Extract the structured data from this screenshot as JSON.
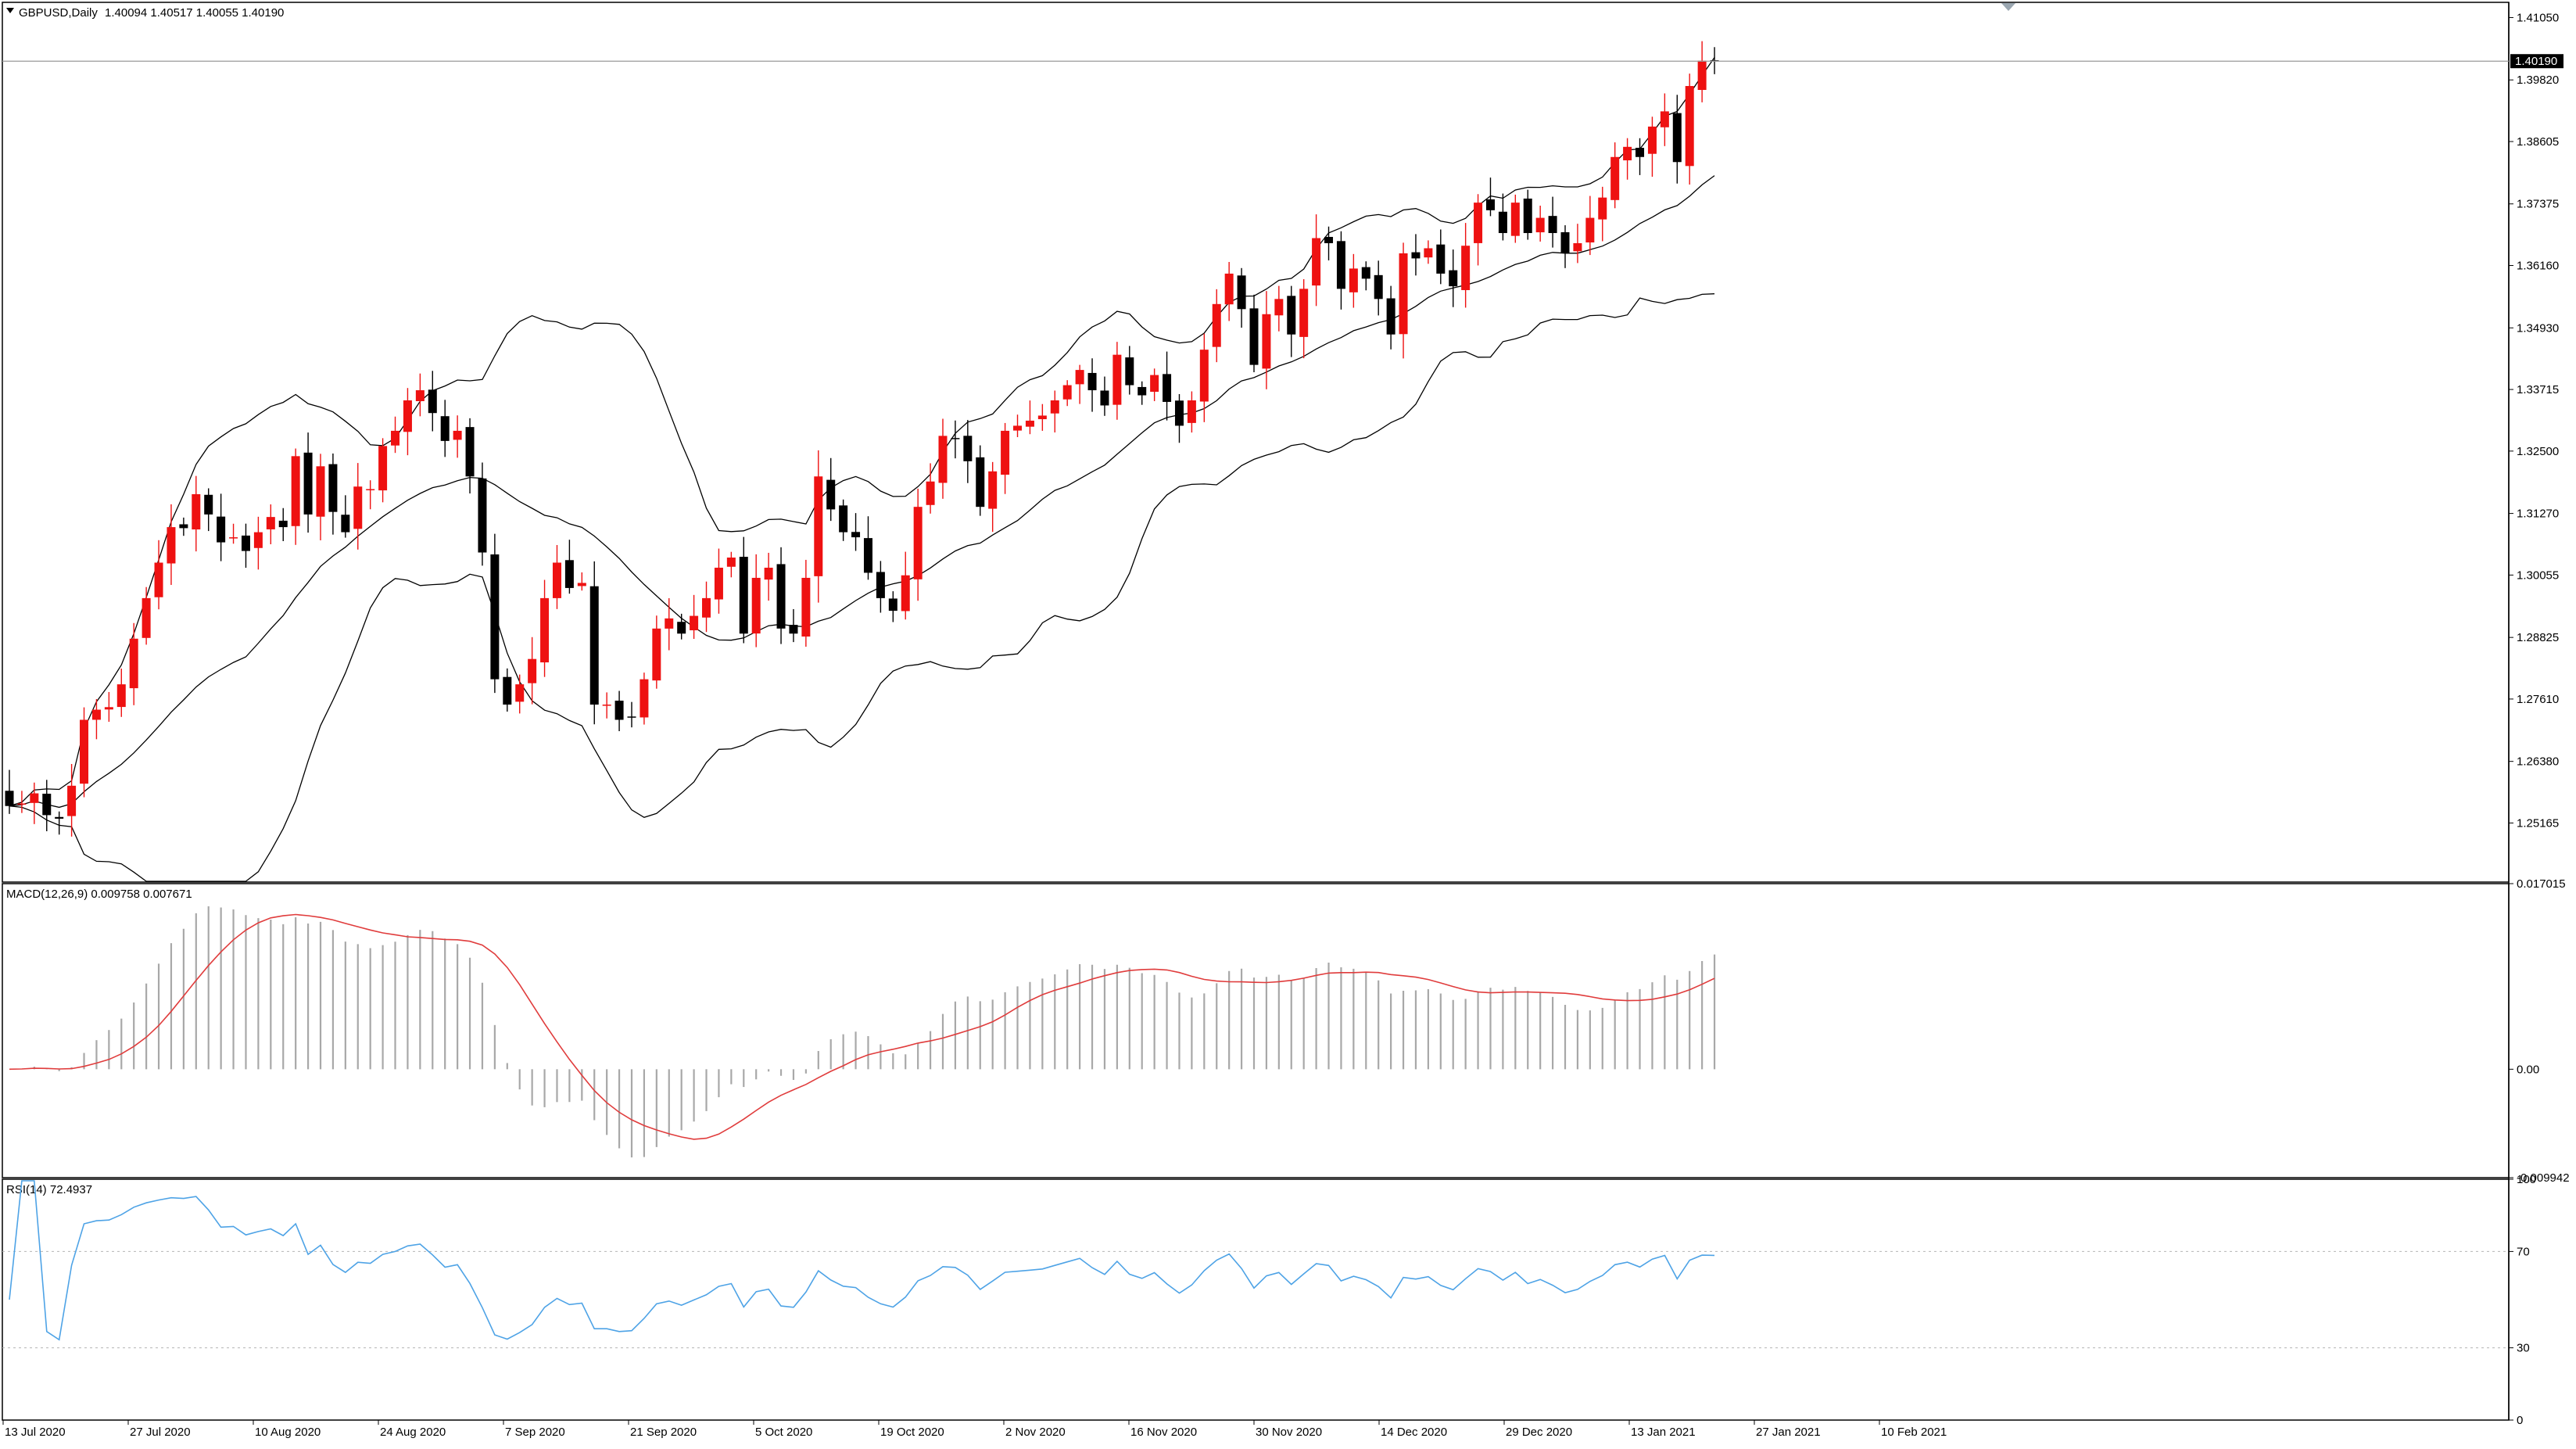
{
  "header": {
    "symbol_label": "GBPUSD,Daily",
    "ohlc": "1.40094 1.40517 1.40055 1.40190"
  },
  "macd_panel": {
    "label": "MACD(12,26,9) 0.009758 0.007671"
  },
  "rsi_panel": {
    "label": "RSI(14) 72.4937"
  },
  "colors": {
    "bull": "#ee1111",
    "bear": "#000000",
    "bands": "#000000",
    "macd_hist": "#a8a8a8",
    "macd_signal": "#e03c3c",
    "rsi": "#4ea3e6",
    "background": "#ffffff"
  },
  "chart_data": [
    {
      "type": "candlestick",
      "title": "GBPUSD,Daily",
      "current_price": "1.40190",
      "y_ticks": [
        "1.41050",
        "1.39820",
        "1.38605",
        "1.37375",
        "1.36160",
        "1.34930",
        "1.33715",
        "1.32500",
        "1.31270",
        "1.30055",
        "1.28825",
        "1.27610",
        "1.26380",
        "1.25165"
      ],
      "ylim": [
        1.24,
        1.4135
      ],
      "x_ticks": [
        "13 Jul 2020",
        "27 Jul 2020",
        "10 Aug 2020",
        "24 Aug 2020",
        "7 Sep 2020",
        "21 Sep 2020",
        "5 Oct 2020",
        "19 Oct 2020",
        "2 Nov 2020",
        "16 Nov 2020",
        "30 Nov 2020",
        "14 Dec 2020",
        "29 Dec 2020",
        "13 Jan 2021",
        "27 Jan 2021",
        "10 Feb 2021"
      ],
      "indicator": "Bollinger Bands (20, 2)",
      "close": [
        1.255,
        1.2555,
        1.2575,
        1.2532,
        1.2525,
        1.259,
        1.272,
        1.274,
        1.2745,
        1.279,
        1.288,
        1.296,
        1.303,
        1.31,
        1.3098,
        1.3165,
        1.3125,
        1.307,
        1.308,
        1.3053,
        1.309,
        1.312,
        1.31,
        1.324,
        1.3125,
        1.322,
        1.313,
        1.309,
        1.318,
        1.3175,
        1.326,
        1.329,
        1.335,
        1.337,
        1.3325,
        1.327,
        1.329,
        1.32,
        1.305,
        1.28,
        1.275,
        1.279,
        1.284,
        1.296,
        1.303,
        1.298,
        1.299,
        1.275,
        1.275,
        1.272,
        1.2725,
        1.28,
        1.29,
        1.292,
        1.289,
        1.2925,
        1.296,
        1.302,
        1.304,
        1.289,
        1.3,
        1.302,
        1.29,
        1.289,
        1.3,
        1.32,
        1.3135,
        1.309,
        1.308,
        1.301,
        1.296,
        1.2935,
        1.3005,
        1.314,
        1.319,
        1.328,
        1.3275,
        1.323,
        1.314,
        1.321,
        1.329,
        1.33,
        1.331,
        1.332,
        1.335,
        1.338,
        1.341,
        1.337,
        1.334,
        1.344,
        1.338,
        1.336,
        1.34,
        1.3347,
        1.33,
        1.335,
        1.345,
        1.354,
        1.36,
        1.353,
        1.342,
        1.352,
        1.355,
        1.348,
        1.357,
        1.367,
        1.366,
        1.357,
        1.361,
        1.359,
        1.355,
        1.348,
        1.364,
        1.363,
        1.365,
        1.36,
        1.3575,
        1.3655,
        1.374,
        1.3725,
        1.368,
        1.374,
        1.368,
        1.371,
        1.368,
        1.364,
        1.366,
        1.371,
        1.375,
        1.383,
        1.385,
        1.383,
        1.389,
        1.392,
        1.382,
        1.397,
        1.402,
        1.4019
      ],
      "last_close": 1.4019
    },
    {
      "type": "bar+line",
      "title": "MACD(12,26,9) 0.009758 0.007671",
      "y_ticks": [
        "0.017015",
        "0.00",
        "-0.009942"
      ],
      "ylim": [
        -0.009942,
        0.017015
      ],
      "main_value": 0.009758,
      "signal_value": 0.007671
    },
    {
      "type": "line",
      "title": "RSI(14) 72.4937",
      "y_ticks": [
        "100",
        "70",
        "30",
        "0"
      ],
      "ylim": [
        0,
        100
      ],
      "levels": [
        70,
        30
      ],
      "last_value": 72.4937
    }
  ]
}
